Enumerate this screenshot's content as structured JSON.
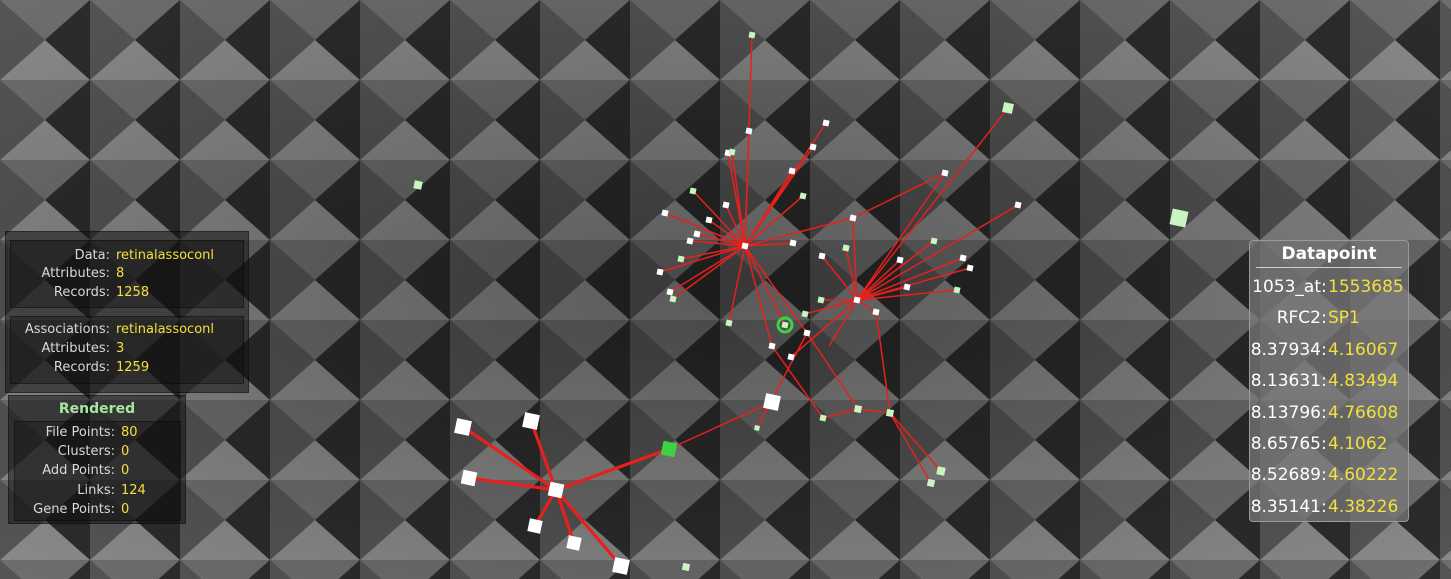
{
  "info": {
    "data_label": "Data:",
    "data_value": "retinalassoconl",
    "attributes_label": "Attributes:",
    "attributes_value": "8",
    "records_label": "Records:",
    "records_value": "1258",
    "assoc_label": "Associations:",
    "assoc_value": "retinalassoconl",
    "assoc_attributes_label": "Attributes:",
    "assoc_attributes_value": "3",
    "assoc_records_label": "Records:",
    "assoc_records_value": "1259"
  },
  "rendered": {
    "title": "Rendered",
    "file_points_label": "File Points:",
    "file_points_value": "80",
    "clusters_label": "Clusters:",
    "clusters_value": "0",
    "add_points_label": "Add Points:",
    "add_points_value": "0",
    "links_label": "Links:",
    "links_value": "124",
    "gene_points_label": "Gene Points:",
    "gene_points_value": "0"
  },
  "datapoint": {
    "title": "Datapoint",
    "rows": [
      {
        "key": "1053_at",
        "value": "1553685"
      },
      {
        "key": "RFC2",
        "value": "SP1"
      },
      {
        "key": "8.37934",
        "value": "4.16067"
      },
      {
        "key": "8.13631",
        "value": "4.83494"
      },
      {
        "key": "8.13796",
        "value": "4.76608"
      },
      {
        "key": "8.65765",
        "value": "4.1062"
      },
      {
        "key": "8.52689",
        "value": "4.60222"
      },
      {
        "key": "8.35141",
        "value": "4.38226"
      }
    ]
  },
  "colors": {
    "link": "#e8201c",
    "node": "#ffffff",
    "node_tint": "#c8f5c0",
    "selected": "#3fd23f",
    "value": "#f2e03c",
    "rendered_title": "#a8e6a0"
  }
}
